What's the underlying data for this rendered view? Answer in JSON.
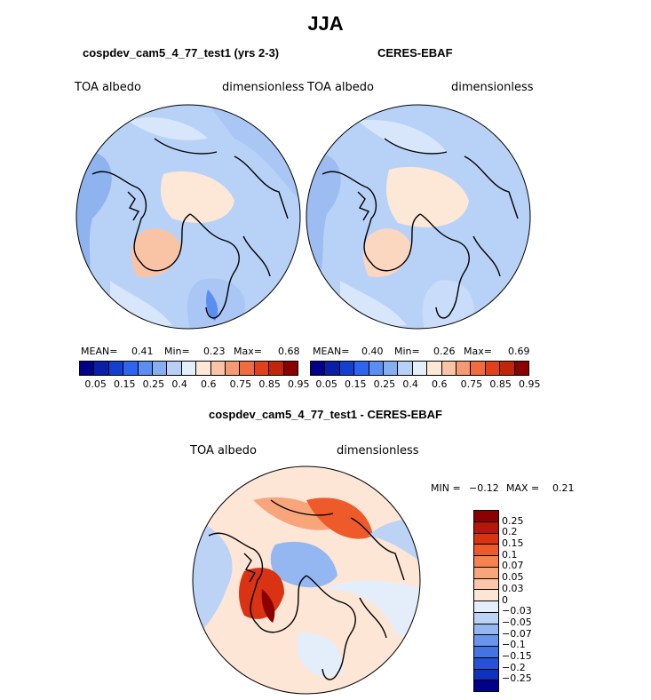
{
  "figure_title": "JJA",
  "panels": [
    {
      "id": "model",
      "title": "cospdev_cam5_4_77_test1 (yrs 2-3)",
      "variable": "TOA albedo",
      "units": "dimensionless",
      "stats": {
        "mean_label": "MEAN=",
        "mean": "0.41",
        "min_label": "Min=",
        "min": "0.23",
        "max_label": "Max=",
        "max": "0.68"
      }
    },
    {
      "id": "obs",
      "title": "CERES-EBAF",
      "variable": "TOA albedo",
      "units": "dimensionless",
      "stats": {
        "mean_label": "MEAN=",
        "mean": "0.40",
        "min_label": "Min=",
        "min": "0.26",
        "max_label": "Max=",
        "max": "0.69"
      }
    }
  ],
  "diff_panel": {
    "title": "cospdev_cam5_4_77_test1 - CERES-EBAF",
    "variable": "TOA albedo",
    "units": "dimensionless",
    "min_label": "MIN =",
    "min": "−0.12",
    "max_label": "MAX =",
    "max": "0.21"
  },
  "abs_colorbar": {
    "colors": [
      "#00008b",
      "#0a1fa8",
      "#1440d0",
      "#2f64ee",
      "#5a8ef2",
      "#86aff2",
      "#b6d0f6",
      "#e4eefb",
      "#fde8d8",
      "#f9c4a6",
      "#f59a73",
      "#f06b3e",
      "#e2401b",
      "#c1260b",
      "#8b0000"
    ],
    "labels": [
      "0.05",
      "0.15",
      "0.25",
      "0.4",
      "0.6",
      "0.75",
      "0.85",
      "0.95"
    ]
  },
  "diff_colorbar": {
    "colors": [
      "#8b0000",
      "#b5170a",
      "#d93314",
      "#ee5a29",
      "#f58250",
      "#f8a57c",
      "#fbc7a8",
      "#fde6d6",
      "#e4eefb",
      "#bcd3f6",
      "#94b6f1",
      "#6a95ec",
      "#4473e5",
      "#2552d6",
      "#0f31bd",
      "#00008b"
    ],
    "labels": [
      "0.25",
      "0.2",
      "0.15",
      "0.1",
      "0.07",
      "0.05",
      "0.03",
      "0",
      "−0.03",
      "−0.05",
      "−0.07",
      "−0.1",
      "−0.15",
      "−0.2",
      "−0.25"
    ]
  }
}
